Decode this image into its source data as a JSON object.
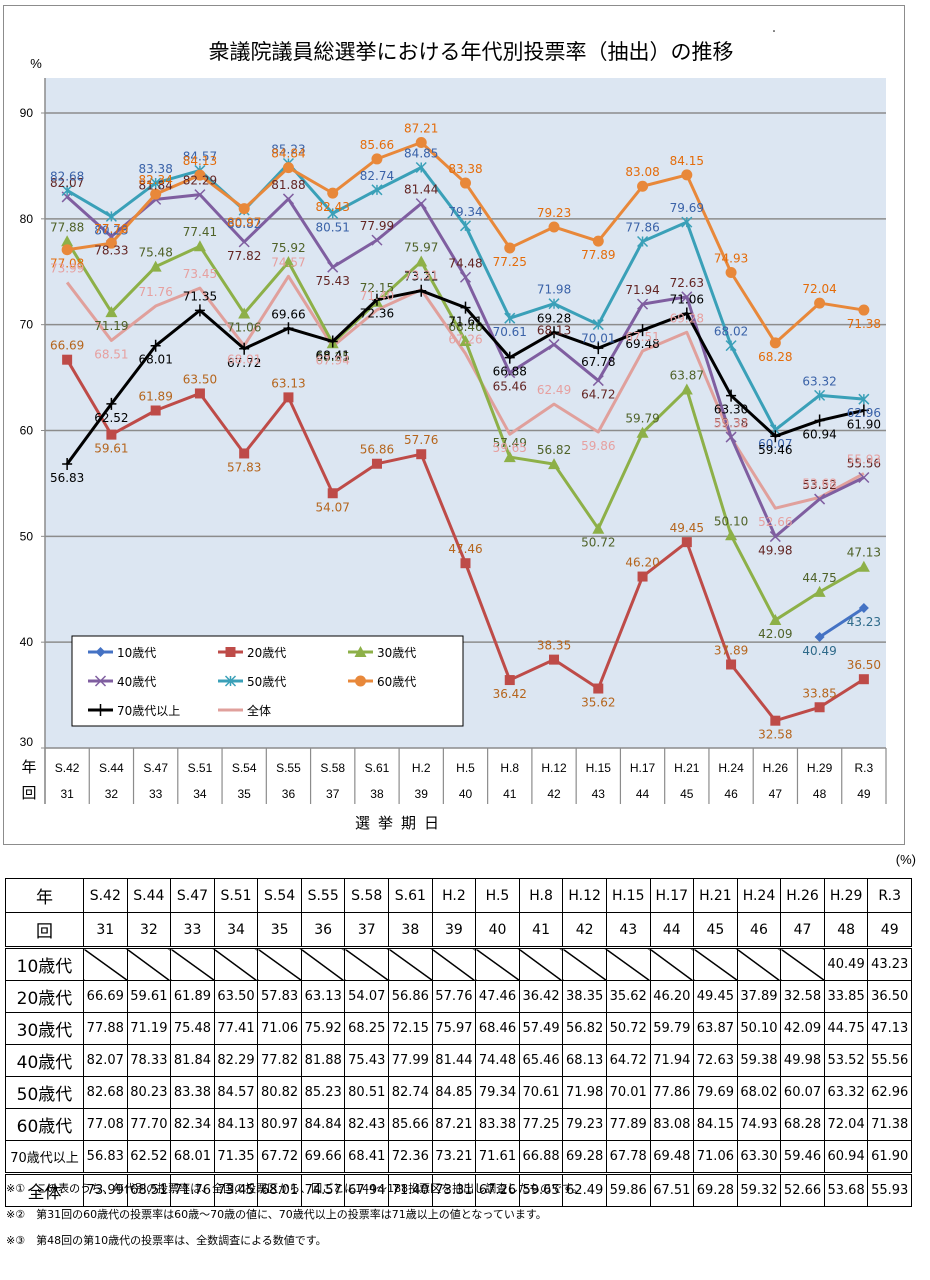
{
  "chart_data": {
    "type": "line",
    "title": "衆議院議員総選挙における年代別投票率（抽出）の推移",
    "ylabel": "%",
    "xlabel": "選 挙 期 日",
    "ylim": [
      30,
      90
    ],
    "yticks": [
      30,
      40,
      50,
      60,
      70,
      80,
      90
    ],
    "grid": true,
    "legend_position": "bottom-left",
    "x_row_labels": [
      "年",
      "回"
    ],
    "categories": [
      "S.42",
      "S.44",
      "S.47",
      "S.51",
      "S.54",
      "S.55",
      "S.58",
      "S.61",
      "H.2",
      "H.5",
      "H.8",
      "H.12",
      "H.15",
      "H.17",
      "H.21",
      "H.24",
      "H.26",
      "H.29",
      "R.3"
    ],
    "sessions": [
      "31",
      "32",
      "33",
      "34",
      "35",
      "36",
      "37",
      "38",
      "39",
      "40",
      "41",
      "42",
      "43",
      "44",
      "45",
      "46",
      "47",
      "48",
      "49"
    ],
    "series": [
      {
        "name": "10歳代",
        "color": "#4472c4",
        "label_color": "#2e6a8a",
        "marker": "diamond",
        "values": [
          null,
          null,
          null,
          null,
          null,
          null,
          null,
          null,
          null,
          null,
          null,
          null,
          null,
          null,
          null,
          null,
          null,
          40.49,
          43.23
        ]
      },
      {
        "name": "20歳代",
        "color": "#be4b48",
        "label_color": "#b5651d",
        "marker": "square",
        "values": [
          66.69,
          59.61,
          61.89,
          63.5,
          57.83,
          63.13,
          54.07,
          56.86,
          57.76,
          47.46,
          36.42,
          38.35,
          35.62,
          46.2,
          49.45,
          37.89,
          32.58,
          33.85,
          36.5
        ]
      },
      {
        "name": "30歳代",
        "color": "#8db048",
        "label_color": "#4f6228",
        "marker": "triangle",
        "values": [
          77.88,
          71.19,
          75.48,
          77.41,
          71.06,
          75.92,
          68.25,
          72.15,
          75.97,
          68.46,
          57.49,
          56.82,
          50.72,
          59.79,
          63.87,
          50.1,
          42.09,
          44.75,
          47.13
        ]
      },
      {
        "name": "40歳代",
        "color": "#7f5ea0",
        "label_color": "#632523",
        "marker": "x",
        "values": [
          82.07,
          78.33,
          81.84,
          82.29,
          77.82,
          81.88,
          75.43,
          77.99,
          81.44,
          74.48,
          65.46,
          68.13,
          64.72,
          71.94,
          72.63,
          59.38,
          49.98,
          53.52,
          55.56
        ]
      },
      {
        "name": "50歳代",
        "color": "#3aa0b8",
        "label_color": "#3a62a8",
        "marker": "star",
        "values": [
          82.68,
          80.23,
          83.38,
          84.57,
          80.82,
          85.23,
          80.51,
          82.74,
          84.85,
          79.34,
          70.61,
          71.98,
          70.01,
          77.86,
          79.69,
          68.02,
          60.07,
          63.32,
          62.96
        ]
      },
      {
        "name": "60歳代",
        "color": "#e8883a",
        "label_color": "#e46c0a",
        "marker": "circle",
        "values": [
          77.08,
          77.7,
          82.34,
          84.13,
          80.97,
          84.84,
          82.43,
          85.66,
          87.21,
          83.38,
          77.25,
          79.23,
          77.89,
          83.08,
          84.15,
          74.93,
          68.28,
          72.04,
          71.38
        ]
      },
      {
        "name": "70歳代以上",
        "color": "#000000",
        "label_color": "#000000",
        "marker": "plus",
        "values": [
          56.83,
          62.52,
          68.01,
          71.35,
          67.72,
          69.66,
          68.41,
          72.36,
          73.21,
          71.61,
          66.88,
          69.28,
          67.78,
          69.48,
          71.06,
          63.3,
          59.46,
          60.94,
          61.9
        ]
      },
      {
        "name": "全体",
        "color": "#e0a09c",
        "label_color": "#e6a0a0",
        "marker": "none",
        "values": [
          73.99,
          68.51,
          71.76,
          73.45,
          68.01,
          74.57,
          67.94,
          71.4,
          73.31,
          67.26,
          59.65,
          62.49,
          59.86,
          67.51,
          69.28,
          59.32,
          52.66,
          53.68,
          55.93
        ]
      }
    ]
  },
  "table": {
    "unit": "(%)",
    "year_label": "年",
    "session_label": "回",
    "rows": [
      {
        "label": "10歳代",
        "values": [
          null,
          null,
          null,
          null,
          null,
          null,
          null,
          null,
          null,
          null,
          null,
          null,
          null,
          null,
          null,
          null,
          null,
          "40.49",
          "43.23"
        ]
      },
      {
        "label": "20歳代",
        "values": [
          "66.69",
          "59.61",
          "61.89",
          "63.50",
          "57.83",
          "63.13",
          "54.07",
          "56.86",
          "57.76",
          "47.46",
          "36.42",
          "38.35",
          "35.62",
          "46.20",
          "49.45",
          "37.89",
          "32.58",
          "33.85",
          "36.50"
        ]
      },
      {
        "label": "30歳代",
        "values": [
          "77.88",
          "71.19",
          "75.48",
          "77.41",
          "71.06",
          "75.92",
          "68.25",
          "72.15",
          "75.97",
          "68.46",
          "57.49",
          "56.82",
          "50.72",
          "59.79",
          "63.87",
          "50.10",
          "42.09",
          "44.75",
          "47.13"
        ]
      },
      {
        "label": "40歳代",
        "values": [
          "82.07",
          "78.33",
          "81.84",
          "82.29",
          "77.82",
          "81.88",
          "75.43",
          "77.99",
          "81.44",
          "74.48",
          "65.46",
          "68.13",
          "64.72",
          "71.94",
          "72.63",
          "59.38",
          "49.98",
          "53.52",
          "55.56"
        ]
      },
      {
        "label": "50歳代",
        "values": [
          "82.68",
          "80.23",
          "83.38",
          "84.57",
          "80.82",
          "85.23",
          "80.51",
          "82.74",
          "84.85",
          "79.34",
          "70.61",
          "71.98",
          "70.01",
          "77.86",
          "79.69",
          "68.02",
          "60.07",
          "63.32",
          "62.96"
        ]
      },
      {
        "label": "60歳代",
        "values": [
          "77.08",
          "77.70",
          "82.34",
          "84.13",
          "80.97",
          "84.84",
          "82.43",
          "85.66",
          "87.21",
          "83.38",
          "77.25",
          "79.23",
          "77.89",
          "83.08",
          "84.15",
          "74.93",
          "68.28",
          "72.04",
          "71.38"
        ]
      },
      {
        "label": "70歳代以上",
        "values": [
          "56.83",
          "62.52",
          "68.01",
          "71.35",
          "67.72",
          "69.66",
          "68.41",
          "72.36",
          "73.21",
          "71.61",
          "66.88",
          "69.28",
          "67.78",
          "69.48",
          "71.06",
          "63.30",
          "59.46",
          "60.94",
          "61.90"
        ]
      },
      {
        "label": "全体",
        "values": [
          "73.99",
          "68.51",
          "71.76",
          "73.45",
          "68.01",
          "74.57",
          "67.94",
          "71.40",
          "73.31",
          "67.26",
          "59.65",
          "62.49",
          "59.86",
          "67.51",
          "69.28",
          "59.32",
          "52.66",
          "53.68",
          "55.93"
        ]
      }
    ]
  },
  "notes": [
    "※①　この表のうち、年代別の投票率は、全国の投票区から、回ごとに144～188投票区を抽出し調査したものです。",
    "※②　第31回の60歳代の投票率は60歳～70歳の値に、70歳代以上の投票率は71歳以上の値となっています。",
    "※③　第48回の第10歳代の投票率は、全数調査による数値です。"
  ]
}
